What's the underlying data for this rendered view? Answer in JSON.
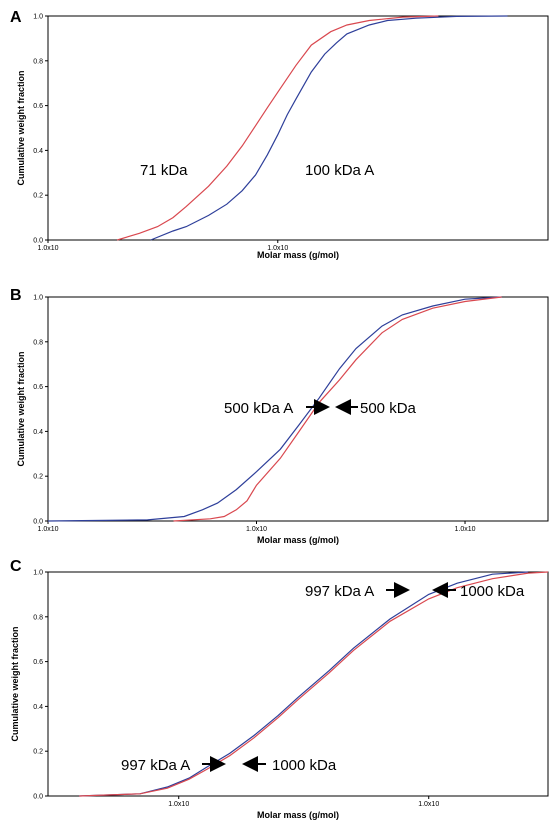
{
  "colors": {
    "red_series": "#d9484f",
    "blue_series": "#2e3f9a",
    "axis": "#000000"
  },
  "chart_data": [
    {
      "type": "line",
      "panel_label": "A",
      "xlabel": "Molar mass (g/mol)",
      "ylabel": "Cumulative weight fraction",
      "x_scale": "log",
      "xlim": [
        10000,
        1500000
      ],
      "ylim": [
        0,
        1.0
      ],
      "x_ticks": [
        {
          "value": 10000,
          "label": "1.0x10"
        },
        {
          "value": 100000,
          "label": "1.0x10"
        }
      ],
      "y_ticks": [
        "0.0",
        "0.2",
        "0.4",
        "0.6",
        "0.8",
        "1.0"
      ],
      "series": [
        {
          "color": "red",
          "x": [
            20000,
            25000,
            30000,
            35000,
            40000,
            50000,
            60000,
            70000,
            80000,
            90000,
            100000,
            120000,
            140000,
            170000,
            200000,
            250000,
            350000,
            500000
          ],
          "y": [
            0.0,
            0.03,
            0.06,
            0.1,
            0.15,
            0.24,
            0.33,
            0.42,
            0.51,
            0.59,
            0.66,
            0.78,
            0.87,
            0.93,
            0.96,
            0.98,
            0.995,
            1.0
          ]
        },
        {
          "color": "blue",
          "x": [
            28000,
            35000,
            40000,
            50000,
            60000,
            70000,
            80000,
            90000,
            100000,
            110000,
            120000,
            140000,
            160000,
            180000,
            200000,
            250000,
            300000,
            400000,
            600000,
            1000000
          ],
          "y": [
            0.0,
            0.04,
            0.06,
            0.11,
            0.16,
            0.22,
            0.29,
            0.38,
            0.47,
            0.56,
            0.63,
            0.75,
            0.83,
            0.88,
            0.92,
            0.96,
            0.98,
            0.99,
            0.998,
            1.0
          ]
        }
      ],
      "annotations": [
        "71 kDa",
        "100 kDa A"
      ]
    },
    {
      "type": "line",
      "panel_label": "B",
      "xlabel": "Molar mass (g/mol)",
      "ylabel": "Cumulative weight fraction",
      "x_scale": "log",
      "xlim": [
        10000,
        2500000
      ],
      "ylim": [
        0,
        1.0
      ],
      "x_ticks": [
        {
          "value": 10000,
          "label": "1.0x10"
        },
        {
          "value": 100000,
          "label": "1.0x10"
        },
        {
          "value": 1000000,
          "label": "1.0x10"
        }
      ],
      "y_ticks": [
        "0.0",
        "0.2",
        "0.4",
        "0.6",
        "0.8",
        "1.0"
      ],
      "series": [
        {
          "color": "blue",
          "x": [
            10000,
            30000,
            45000,
            55000,
            65000,
            80000,
            100000,
            130000,
            160000,
            200000,
            250000,
            300000,
            400000,
            500000,
            700000,
            1000000,
            1500000
          ],
          "y": [
            0.0,
            0.005,
            0.02,
            0.05,
            0.08,
            0.14,
            0.22,
            0.32,
            0.43,
            0.55,
            0.68,
            0.77,
            0.87,
            0.92,
            0.96,
            0.99,
            1.0
          ]
        },
        {
          "color": "red",
          "x": [
            40000,
            60000,
            70000,
            80000,
            90000,
            100000,
            130000,
            160000,
            200000,
            250000,
            300000,
            400000,
            500000,
            700000,
            1000000,
            1500000
          ],
          "y": [
            0.0,
            0.01,
            0.02,
            0.05,
            0.09,
            0.16,
            0.28,
            0.4,
            0.53,
            0.63,
            0.72,
            0.84,
            0.9,
            0.95,
            0.98,
            1.0
          ]
        }
      ],
      "annotations": [
        "500 kDa A",
        "500 kDa"
      ]
    },
    {
      "type": "line",
      "panel_label": "C",
      "xlabel": "Molar mass (g/mol)",
      "ylabel": "Cumulative weight fraction",
      "x_scale": "log",
      "xlim": [
        30000,
        3000000
      ],
      "ylim": [
        0,
        1.0
      ],
      "x_ticks": [
        {
          "value": 100000,
          "label": "1.0x10"
        },
        {
          "value": 1000000,
          "label": "1.0x10"
        }
      ],
      "y_ticks": [
        "0.0",
        "0.2",
        "0.4",
        "0.6",
        "0.8",
        "1.0"
      ],
      "series": [
        {
          "color": "blue",
          "x": [
            40000,
            70000,
            90000,
            110000,
            130000,
            160000,
            200000,
            250000,
            300000,
            400000,
            500000,
            700000,
            1000000,
            1300000,
            1800000,
            2500000
          ],
          "y": [
            0.0,
            0.01,
            0.04,
            0.08,
            0.13,
            0.19,
            0.27,
            0.36,
            0.44,
            0.56,
            0.66,
            0.79,
            0.9,
            0.95,
            0.99,
            1.0
          ]
        },
        {
          "color": "red",
          "x": [
            40000,
            70000,
            90000,
            110000,
            130000,
            160000,
            200000,
            250000,
            300000,
            400000,
            500000,
            700000,
            1000000,
            1300000,
            1800000,
            2500000,
            3000000
          ],
          "y": [
            0.0,
            0.01,
            0.035,
            0.075,
            0.12,
            0.18,
            0.26,
            0.35,
            0.43,
            0.55,
            0.65,
            0.78,
            0.88,
            0.93,
            0.97,
            0.995,
            1.0
          ]
        }
      ],
      "annotations": [
        "997 kDa A",
        "1000 kDa",
        "997 kDa A",
        "1000 kDa"
      ]
    }
  ]
}
